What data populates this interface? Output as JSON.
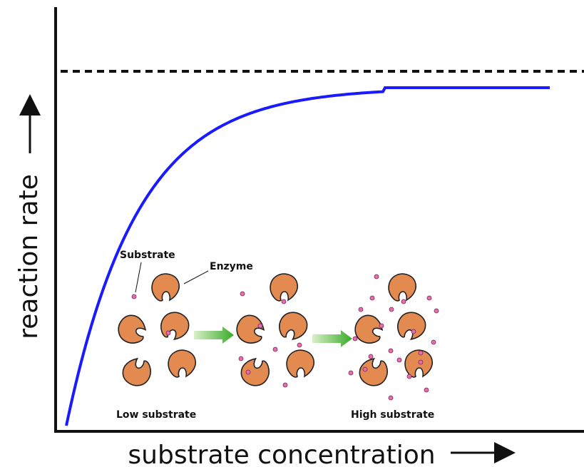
{
  "axes": {
    "y_label": "reaction rate",
    "x_label": "substrate concentration"
  },
  "annotations": {
    "substrate": "Substrate",
    "enzyme": "Enzyme",
    "low": "Low substrate",
    "high": "High substrate"
  }
}
